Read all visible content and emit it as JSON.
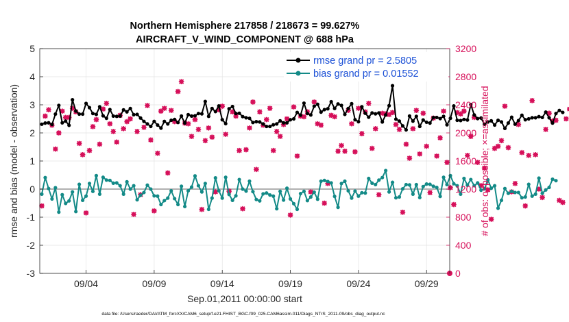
{
  "chart_data": {
    "type": "line",
    "title": "Northern Hemisphere 217858 / 218673 = 99.627%",
    "subtitle": "AIRCRAFT_V_WIND_COMPONENT @ 688 hPa",
    "xlabel": "Sep.01,2011 00:00:00 start",
    "ylabel_left": "rmse and bias (model - observation)",
    "ylabel_right": "# of obs: o=possible; ×=assimilated",
    "footer": "data file: /Users/raeder/DAI/ATM_forcXX/CAM6_setup/f.e21.FHIST_BGC.f09_025.CAM6assim.011/Diags_NTrS_2011-09/obs_diag_output.nc",
    "x_range": [
      0.6,
      30.7
    ],
    "ylim_left": [
      -3,
      5
    ],
    "ylim_right": [
      0,
      3200
    ],
    "left_ticks": [
      "-3",
      "-2",
      "-1",
      "0",
      "1",
      "2",
      "3",
      "4",
      "5"
    ],
    "right_ticks": [
      "0",
      "400",
      "800",
      "1200",
      "1600",
      "2000",
      "2400",
      "2800",
      "3200"
    ],
    "x_ticks": [
      {
        "day": 4,
        "label": "09/04"
      },
      {
        "day": 9,
        "label": "09/09"
      },
      {
        "day": 14,
        "label": "09/14"
      },
      {
        "day": 19,
        "label": "09/19"
      },
      {
        "day": 24,
        "label": "09/24"
      },
      {
        "day": 29,
        "label": "09/29"
      }
    ],
    "grid": true,
    "legend": [
      {
        "label": "rmse grand pr = 2.5805",
        "color": "#000000"
      },
      {
        "label": "bias grand pr = 0.01552",
        "color": "#138a87"
      }
    ],
    "legend_position": "top-right",
    "colors": {
      "rmse": "#000000",
      "bias": "#138a87",
      "obs": "#d6105a",
      "zero_line": "#b0b0b0",
      "legend_text": "#1a4fd6"
    },
    "series_x": {
      "start_day": 0.75,
      "step_day": 0.25
    },
    "series": [
      {
        "name": "rmse",
        "values": [
          2.31,
          2.35,
          2.36,
          2.3,
          2.67,
          2.98,
          2.36,
          2.42,
          2.27,
          3.18,
          2.78,
          2.67,
          2.67,
          3.05,
          2.9,
          2.69,
          2.66,
          2.93,
          2.61,
          2.52,
          2.83,
          2.6,
          2.59,
          2.6,
          2.82,
          2.75,
          2.87,
          2.65,
          2.66,
          2.53,
          2.41,
          2.32,
          2.23,
          2.41,
          2.28,
          2.17,
          2.41,
          2.32,
          2.45,
          2.48,
          2.37,
          2.6,
          2.35,
          2.65,
          2.6,
          2.61,
          2.69,
          2.68,
          3.12,
          2.59,
          2.87,
          2.76,
          2.96,
          2.47,
          2.33,
          2.86,
          2.94,
          2.69,
          2.7,
          2.58,
          2.54,
          2.52,
          2.37,
          2.4,
          2.39,
          2.32,
          2.23,
          2.23,
          2.29,
          2.32,
          2.43,
          2.36,
          2.36,
          2.47,
          2.5,
          2.73,
          2.63,
          3.06,
          2.69,
          2.64,
          2.95,
          3.02,
          2.74,
          2.83,
          2.86,
          3.11,
          2.87,
          3.03,
          2.98,
          2.66,
          2.87,
          3.04,
          2.47,
          2.4,
          2.93,
          2.7,
          2.56,
          2.71,
          2.68,
          2.71,
          2.39,
          2.64,
          2.97,
          3.68,
          2.49,
          2.42,
          2.25,
          2.11,
          2.6,
          2.42,
          2.59,
          2.23,
          2.46,
          2.38,
          2.35,
          2.55,
          2.55,
          2.51,
          2.59,
          2.29,
          2.52,
          2.96,
          2.45,
          2.44,
          2.48,
          2.46,
          3.01,
          2.64,
          2.51,
          2.53,
          2.31,
          2.39,
          2.43,
          2.28,
          2.45,
          2.39,
          2.16,
          2.35,
          2.56,
          2.31,
          2.44,
          2.63,
          2.47,
          2.5,
          2.54,
          2.54,
          2.58,
          2.55,
          2.74,
          2.54,
          2.35,
          2.69,
          2.8,
          2.73
        ]
      },
      {
        "name": "bias",
        "values": [
          -0.18,
          0.41,
          0.02,
          -0.35,
          0.05,
          -0.82,
          -0.2,
          -0.51,
          -0.42,
          -0.1,
          -0.8,
          0.17,
          -0.4,
          -0.25,
          0.2,
          -0.08,
          0.48,
          -0.18,
          0.42,
          0.32,
          0.31,
          0.21,
          0.22,
          0.12,
          -0.18,
          0.26,
          0.0,
          0.12,
          -0.38,
          -0.22,
          -0.12,
          0.14,
          0.0,
          -0.24,
          -0.25,
          -0.55,
          -0.41,
          -0.32,
          -0.06,
          -0.34,
          -0.55,
          0.1,
          -0.62,
          -0.06,
          0.07,
          0.47,
          0.12,
          -0.1,
          0.2,
          -0.72,
          -0.32,
          0.4,
          -0.06,
          -0.32,
          0.42,
          -0.19,
          -0.4,
          -0.24,
          0.34,
          0.0,
          -0.07,
          0.28,
          -0.09,
          -0.37,
          -0.42,
          -0.17,
          -0.14,
          -0.21,
          -0.25,
          -0.7,
          -0.08,
          -0.39,
          0.03,
          -0.35,
          -0.52,
          -0.72,
          -0.16,
          -0.08,
          -0.41,
          -0.28,
          -0.11,
          -0.36,
          0.28,
          0.31,
          0.27,
          0.22,
          -0.26,
          -0.65,
          0.2,
          0.28,
          -0.06,
          -0.32,
          -0.07,
          -0.25,
          -0.13,
          -0.14,
          0.38,
          0.21,
          0.16,
          0.32,
          0.41,
          0.66,
          -0.1,
          0.24,
          -0.31,
          -0.28,
          0.01,
          0.16,
          0.15,
          -0.18,
          0.16,
          -0.3,
          0.09,
          0.18,
          0.17,
          0.1,
          0.06,
          -0.26,
          0.42,
          0.16,
          0.48,
          0.19,
          0.12,
          -0.18,
          0.38,
          0.14,
          0.34,
          0.12,
          0.22,
          -0.04,
          0.01,
          0.33,
          0.03,
          0.12,
          -0.68,
          -0.4,
          0.02,
          -0.15,
          -0.08,
          -0.12,
          -0.12,
          -0.31,
          -0.28,
          0.17,
          -0.25,
          -0.18,
          0.39,
          -0.15,
          -0.03,
          0.06,
          0.35,
          0.3
        ]
      },
      {
        "name": "obs_possible",
        "values": [
          960,
          2240,
          2330,
          2110,
          1770,
          2000,
          2310,
          2220,
          2220,
          2350,
          2300,
          1850,
          1690,
          860,
          1750,
          2090,
          2190,
          1840,
          2340,
          2420,
          2130,
          2020,
          1870,
          2250,
          2060,
          2160,
          2200,
          840,
          2020,
          1120,
          2080,
          2390,
          1900,
          890,
          1710,
          2310,
          2350,
          1430,
          2320,
          2160,
          2590,
          2730,
          2140,
          2130,
          1950,
          2190,
          2050,
          910,
          1890,
          2070,
          1940,
          1160,
          2330,
          2380,
          1980,
          1170,
          2300,
          2240,
          1750,
          920,
          1760,
          2070,
          2440,
          1480,
          2300,
          2110,
          2190,
          2350,
          1750,
          2020,
          1950,
          2120,
          2200,
          830,
          2370,
          1670,
          2240,
          2230,
          2300,
          1160,
          2440,
          2130,
          2110,
          1000,
          1280,
          2250,
          2230,
          1740,
          1820,
          1740,
          2320,
          2130,
          1730,
          2350,
          1990,
          2300,
          2420,
          1780,
          2060,
          1120,
          2280,
          2270,
          2260,
          2290,
          2120,
          2050,
          870,
          1840,
          1640,
          2060,
          2320,
          1700,
          2280,
          1810,
          1150,
          2210,
          1670,
          1930,
          2310,
          1580,
          1220,
          980,
          2290,
          2270,
          2310,
          1680,
          1950,
          2220,
          1580,
          1250,
          1500,
          1190,
          770,
          1780,
          1810,
          1890,
          2380,
          1790,
          1160,
          1280,
          2120,
          1720,
          960,
          1680,
          2460,
          1690,
          1200,
          1080,
          2050,
          2280,
          2170,
          2180,
          1040,
          1010,
          2200,
          2340,
          2250,
          1260,
          1280,
          1300
        ]
      },
      {
        "name": "obs_assimilated",
        "values": [
          960,
          2240,
          2330,
          2110,
          1770,
          2000,
          2310,
          2220,
          2220,
          2350,
          2300,
          1850,
          1690,
          860,
          1750,
          2090,
          2190,
          1840,
          2340,
          2420,
          2130,
          2020,
          1870,
          2250,
          2060,
          2160,
          2200,
          840,
          2020,
          1120,
          2080,
          2390,
          1900,
          890,
          1710,
          2310,
          2350,
          1430,
          2320,
          2160,
          2590,
          2730,
          2140,
          2130,
          1950,
          2190,
          2050,
          910,
          1890,
          2070,
          1940,
          1160,
          2330,
          2380,
          1980,
          1170,
          2300,
          2240,
          1750,
          920,
          1760,
          2070,
          2440,
          1480,
          2300,
          2110,
          2190,
          2350,
          1750,
          2020,
          1950,
          2120,
          2200,
          830,
          2370,
          1670,
          2240,
          2230,
          2300,
          1160,
          2440,
          2130,
          2110,
          1000,
          1280,
          2250,
          2230,
          1740,
          1820,
          1740,
          2320,
          2130,
          1730,
          2350,
          1990,
          2300,
          2420,
          1780,
          2060,
          1120,
          2280,
          2270,
          2260,
          2290,
          2120,
          2050,
          870,
          1840,
          1640,
          2060,
          2320,
          1700,
          2280,
          1810,
          1150,
          2210,
          1670,
          1930,
          2310,
          1580,
          1220,
          980,
          2290,
          2270,
          2310,
          1680,
          1950,
          2220,
          1580,
          1250,
          1500,
          1190,
          770,
          1780,
          1810,
          1890,
          2380,
          1790,
          1160,
          1280,
          2120,
          1720,
          960,
          1680,
          2460,
          1690,
          1200,
          1080,
          2050,
          2280,
          2170,
          2180,
          1040,
          1010,
          2200,
          2340,
          2250,
          1260,
          1280,
          1300
        ]
      }
    ],
    "last_point_obs": 0
  }
}
